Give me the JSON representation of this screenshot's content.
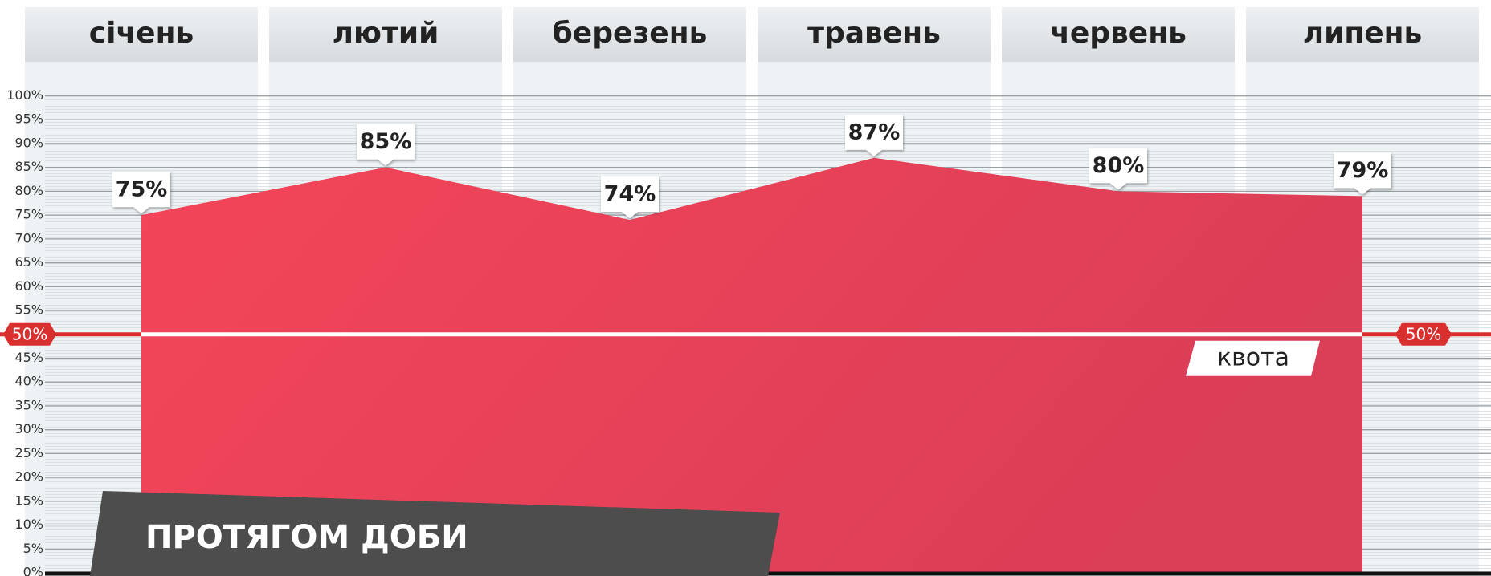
{
  "chart_data": {
    "type": "area",
    "categories": [
      "січень",
      "лютий",
      "березень",
      "травень",
      "червень",
      "липень"
    ],
    "values": [
      75,
      85,
      74,
      87,
      80,
      79
    ],
    "value_labels": [
      "75%",
      "85%",
      "74%",
      "87%",
      "80%",
      "79%"
    ],
    "color": "#ef4458",
    "ylim": [
      0,
      100
    ],
    "yticks": [
      {
        "value": 0,
        "label": "0%"
      },
      {
        "value": 5,
        "label": "5%"
      },
      {
        "value": 10,
        "label": "10%"
      },
      {
        "value": 15,
        "label": "15%"
      },
      {
        "value": 20,
        "label": "20%"
      },
      {
        "value": 25,
        "label": "25%"
      },
      {
        "value": 30,
        "label": "30%"
      },
      {
        "value": 35,
        "label": "35%"
      },
      {
        "value": 40,
        "label": "40%"
      },
      {
        "value": 45,
        "label": "45%"
      },
      {
        "value": 50,
        "label": "50%"
      },
      {
        "value": 55,
        "label": "55%"
      },
      {
        "value": 60,
        "label": "60%"
      },
      {
        "value": 65,
        "label": "65%"
      },
      {
        "value": 70,
        "label": "70%"
      },
      {
        "value": 75,
        "label": "75%"
      },
      {
        "value": 80,
        "label": "80%"
      },
      {
        "value": 85,
        "label": "85%"
      },
      {
        "value": 90,
        "label": "90%"
      },
      {
        "value": 95,
        "label": "95%"
      },
      {
        "value": 100,
        "label": "100%"
      }
    ],
    "grid": true,
    "quota": {
      "value": 50,
      "label": "50%",
      "text": "квота"
    },
    "annotation": "ПРОТЯГОМ ДОБИ"
  }
}
